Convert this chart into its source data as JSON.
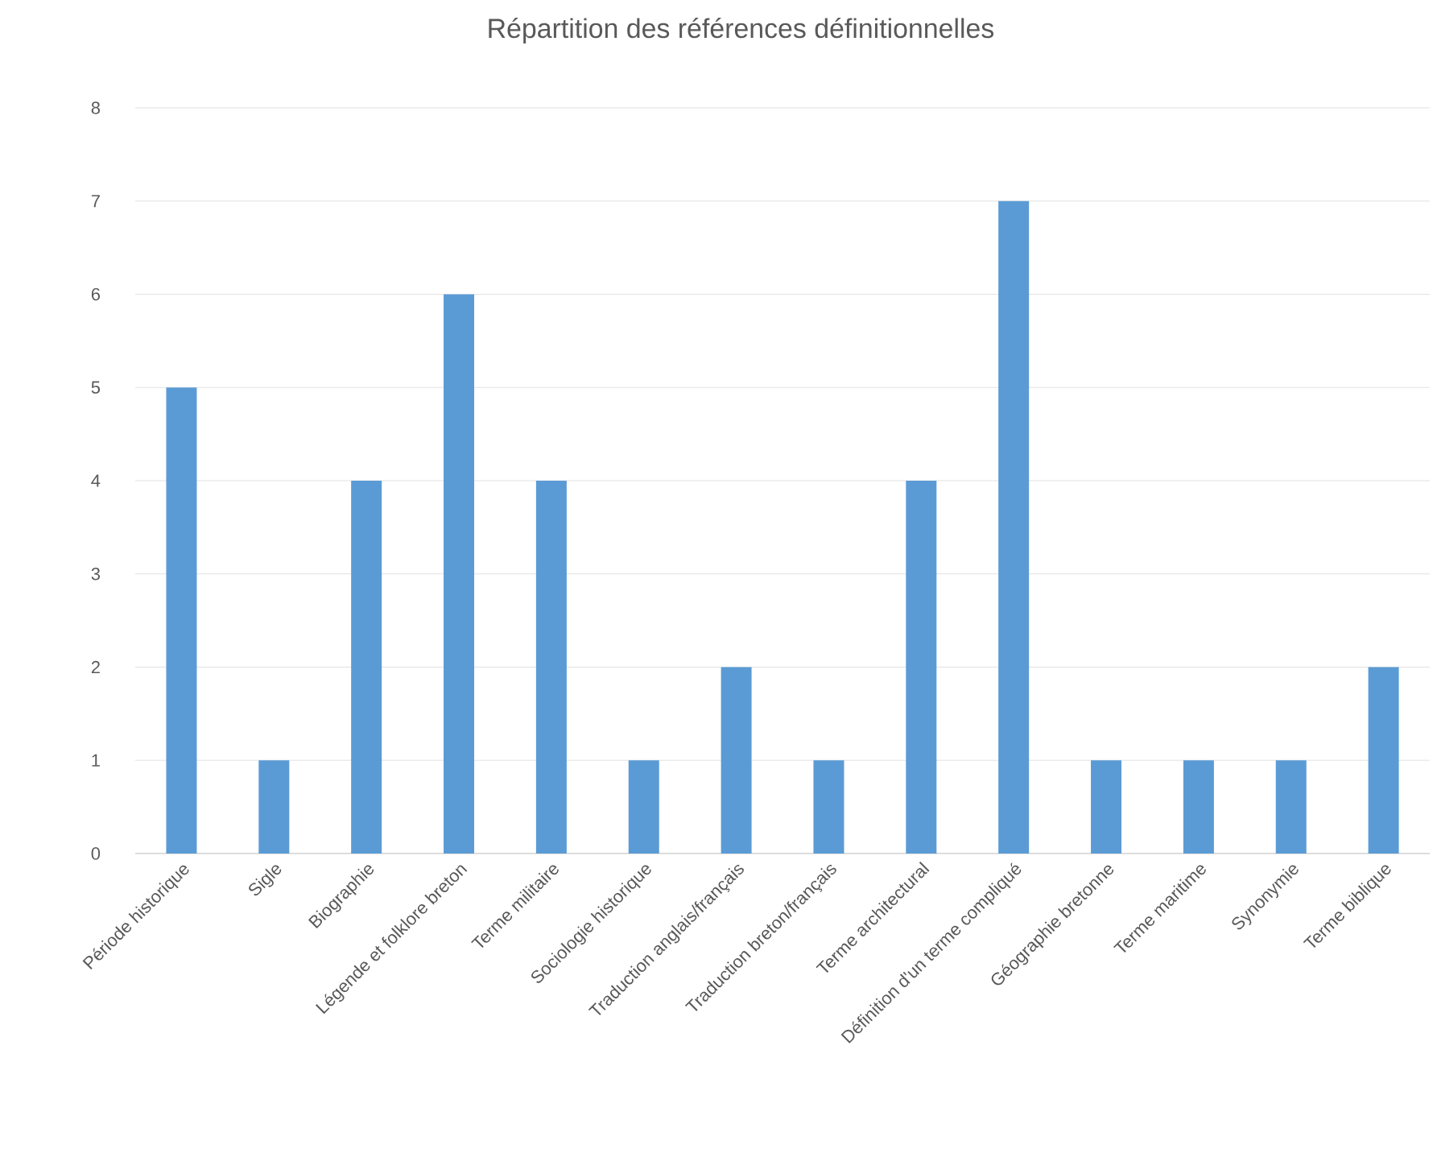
{
  "chart_data": {
    "type": "bar",
    "title": "Répartition des références définitionnelles",
    "categories": [
      "Période historique",
      "Sigle",
      "Biographie",
      "Légende et folklore breton",
      "Terme militaire",
      "Sociologie historique",
      "Traduction anglais/français",
      "Traduction breton/français",
      "Terme architectural",
      "Définition d'un terme compliqué",
      "Géographie bretonne",
      "Terme maritime",
      "Synonymie",
      "Terme biblique"
    ],
    "values": [
      5,
      1,
      4,
      6,
      4,
      1,
      2,
      1,
      4,
      7,
      1,
      1,
      1,
      2
    ],
    "color": "#5b9bd5",
    "ylim": [
      0,
      8
    ],
    "yticks": [
      0,
      1,
      2,
      3,
      4,
      5,
      6,
      7,
      8
    ],
    "grid": "y"
  }
}
